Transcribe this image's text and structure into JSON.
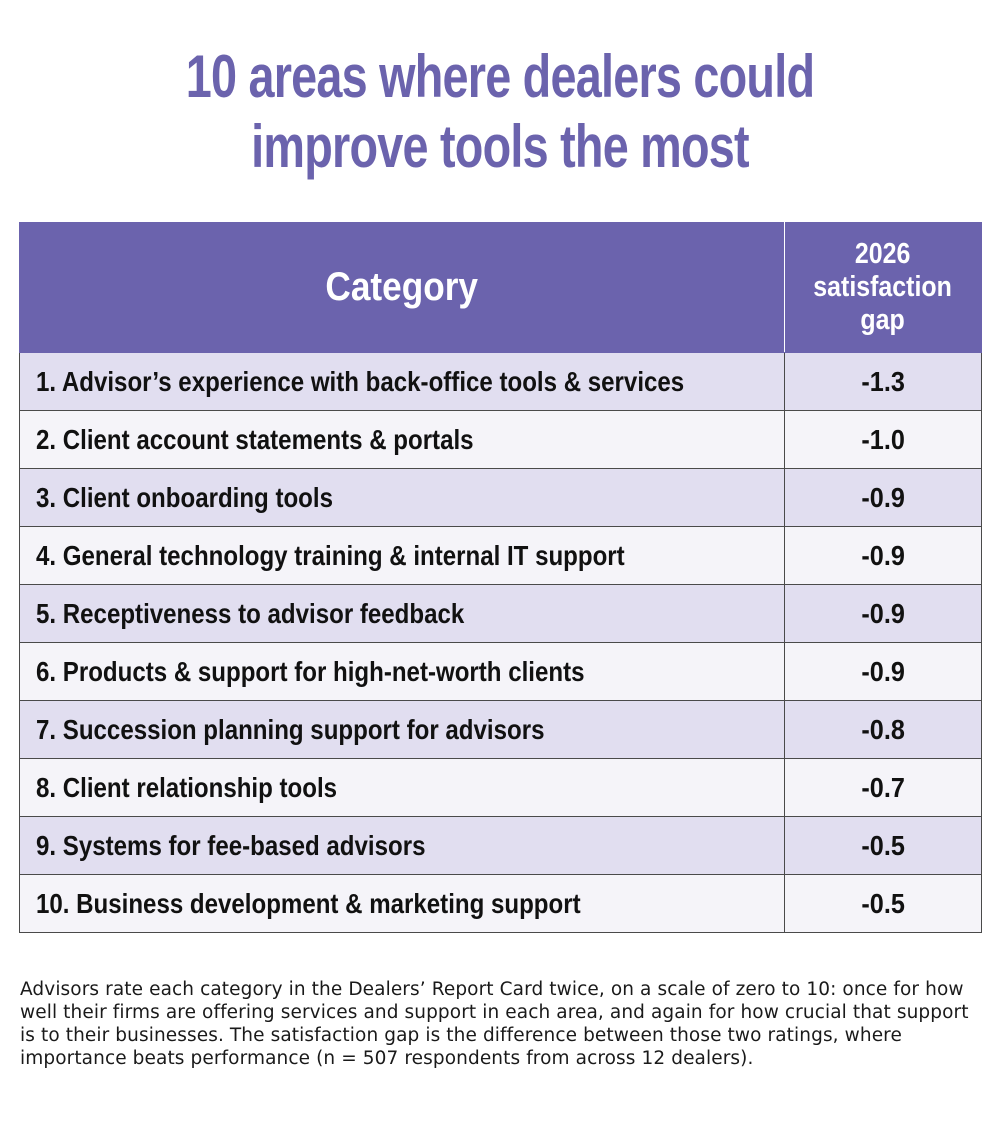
{
  "chart_data": {
    "type": "table",
    "title_lines": [
      "10 areas where dealers could",
      "improve tools the most"
    ],
    "columns": [
      "Category",
      "2026\nsatisfaction\ngap"
    ],
    "rows": [
      {
        "category": "1.  Advisor’s experience with back-office tools & services",
        "value": "-1.3"
      },
      {
        "category": "2. Client account statements & portals",
        "value": "-1.0"
      },
      {
        "category": "3. Client onboarding tools",
        "value": "-0.9"
      },
      {
        "category": "4. General technology training & internal IT support",
        "value": "-0.9"
      },
      {
        "category": "5. Receptiveness to advisor feedback",
        "value": "-0.9"
      },
      {
        "category": "6. Products & support for high-net-worth clients",
        "value": "-0.9"
      },
      {
        "category": "7. Succession planning support for advisors",
        "value": "-0.8"
      },
      {
        "category": "8. Client relationship tools",
        "value": "-0.7"
      },
      {
        "category": "9. Systems for fee-based advisors",
        "value": "-0.5"
      },
      {
        "category": "10. Business development & marketing support",
        "value": "-0.5"
      }
    ],
    "footnote": "Advisors rate each category in the Dealers’ Report Card twice, on a scale of zero to 10: once for how well their firms are offering services and support in each area, and again for how crucial that support is to their businesses. The satisfaction gap is the difference between those two ratings, where importance beats performance (n = 507 respondents from across 12 dealers).",
    "colors": {
      "accent": "#6b63ad",
      "row_odd": "#e1def0",
      "row_even": "#f5f4f9"
    }
  }
}
